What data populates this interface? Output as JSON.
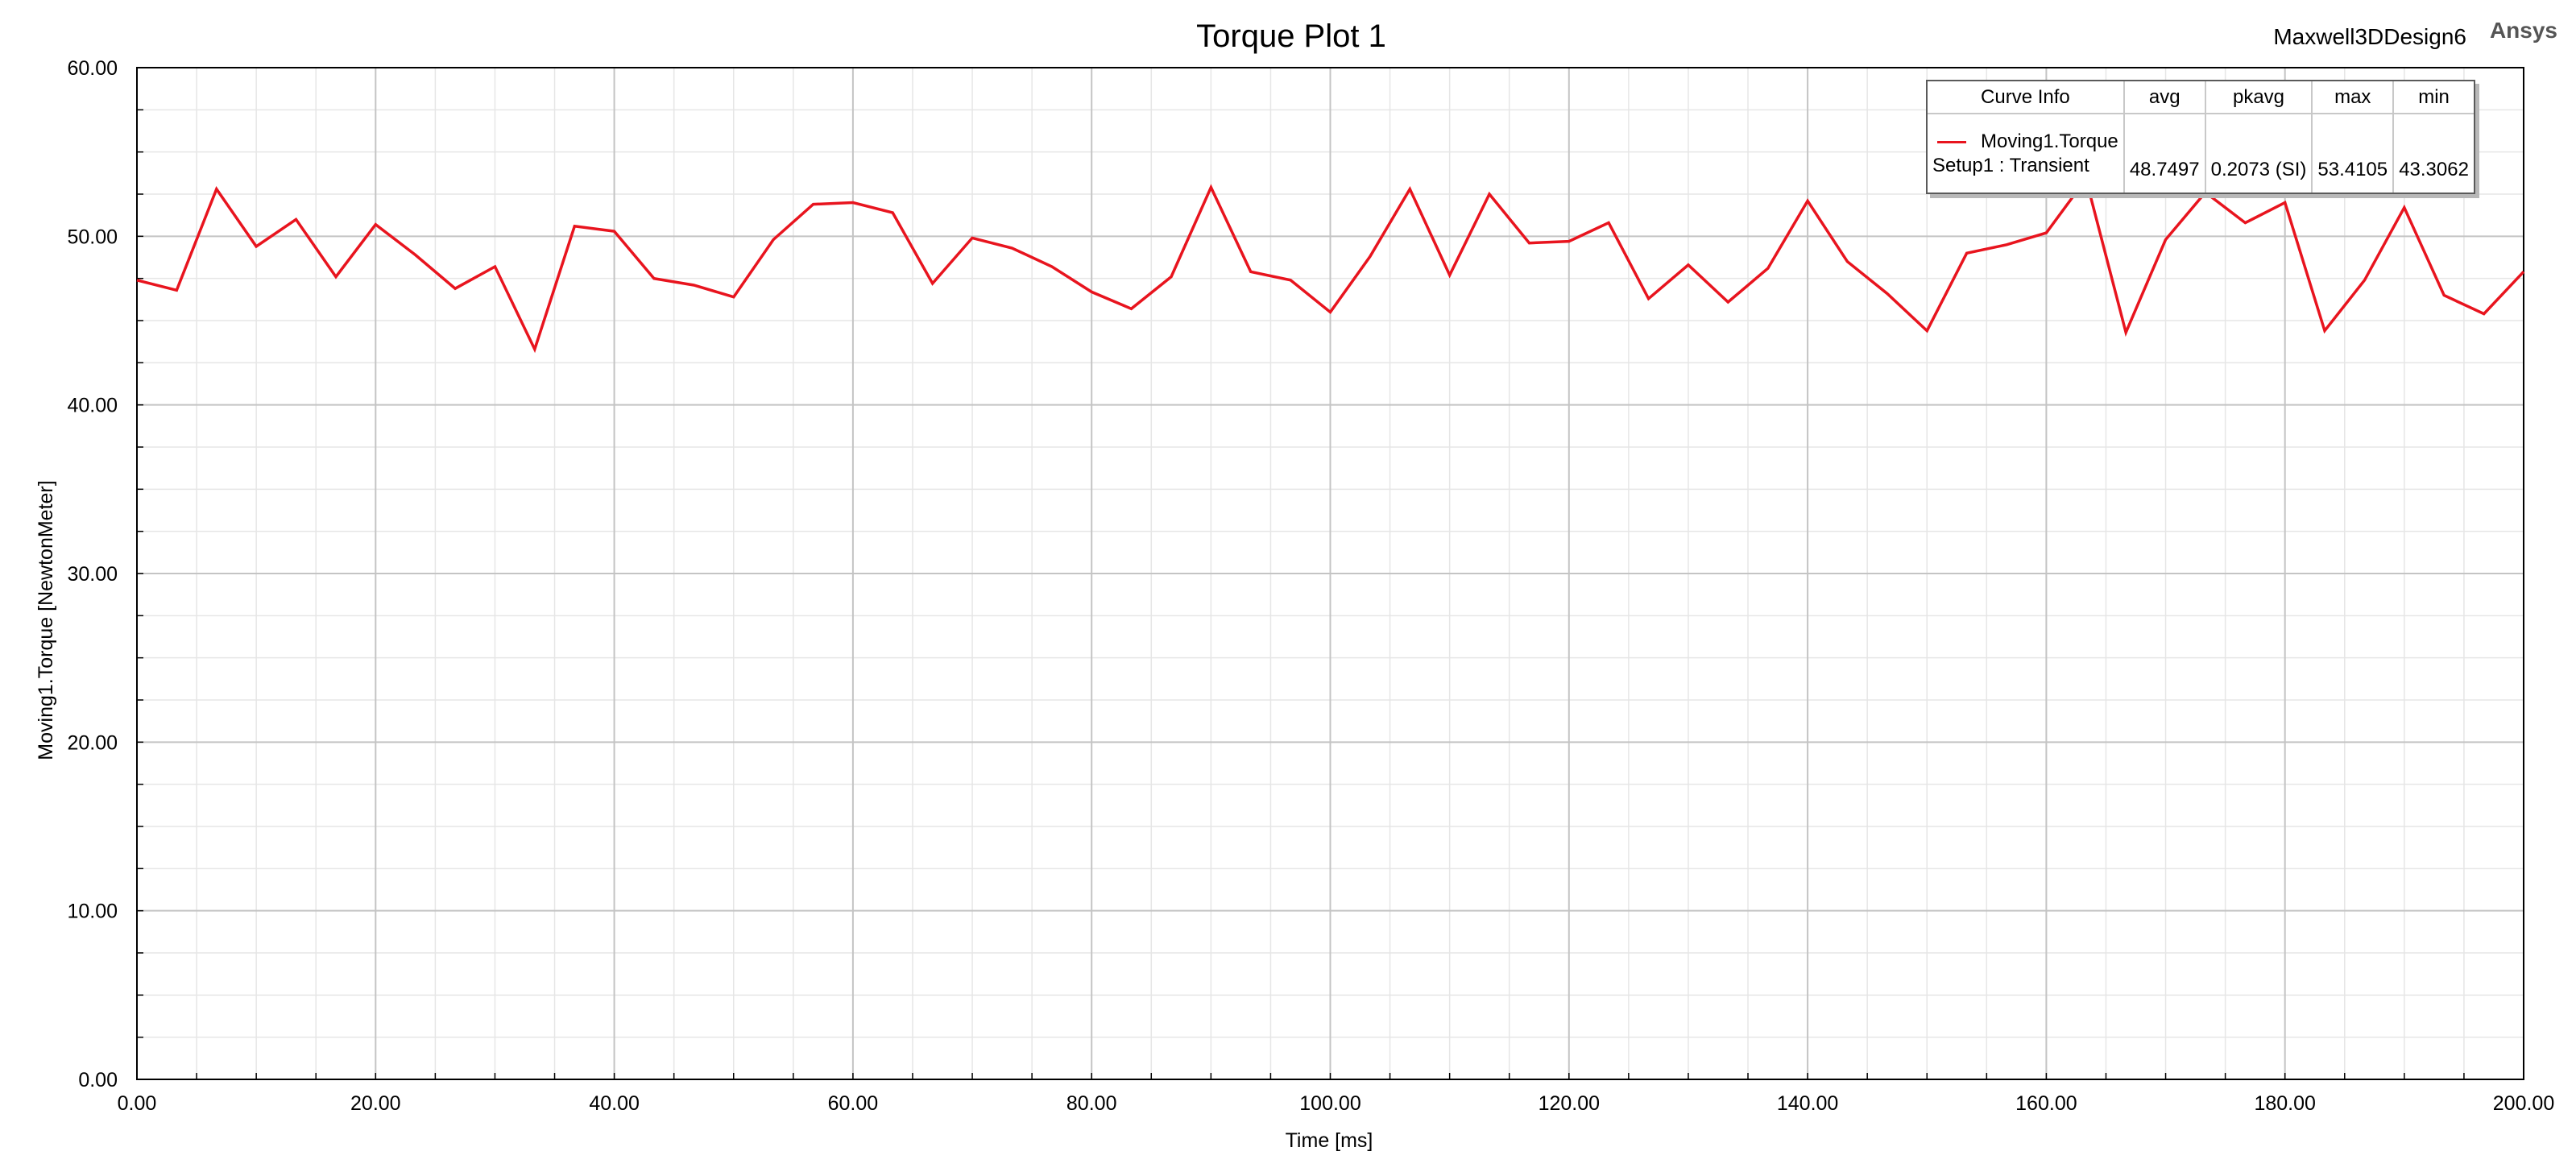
{
  "header": {
    "title": "Torque Plot 1",
    "design_name": "Maxwell3DDesign6",
    "brand": "Ansys"
  },
  "legend": {
    "headers": [
      "Curve Info",
      "avg",
      "pkavg",
      "max",
      "min"
    ],
    "curve_name": "Moving1.Torque",
    "setup": "Setup1 : Transient",
    "avg": "48.7497",
    "pkavg": "0.2073 (SI)",
    "max": "53.4105",
    "min": "43.3062"
  },
  "chart_data": {
    "type": "line",
    "title": "Torque Plot 1",
    "xlabel": "Time [ms]",
    "ylabel": "Moving1.Torque [NewtonMeter]",
    "xlim": [
      0,
      200
    ],
    "ylim": [
      0,
      60
    ],
    "x_ticks": [
      "0.00",
      "20.00",
      "40.00",
      "60.00",
      "80.00",
      "100.00",
      "120.00",
      "140.00",
      "160.00",
      "180.00",
      "200.00"
    ],
    "y_ticks": [
      "0.00",
      "10.00",
      "20.00",
      "30.00",
      "40.00",
      "50.00",
      "60.00"
    ],
    "grid": true,
    "legend_position": "top-right",
    "series": [
      {
        "name": "Moving1.Torque",
        "color": "#e8141e",
        "x": [
          0,
          3.33,
          6.67,
          10,
          13.33,
          16.67,
          20,
          23.33,
          26.67,
          30,
          33.33,
          36.67,
          40,
          43.33,
          46.67,
          50,
          53.33,
          56.67,
          60,
          63.33,
          66.67,
          70,
          73.33,
          76.67,
          80,
          83.33,
          86.67,
          90,
          93.33,
          96.67,
          100,
          103.33,
          106.67,
          110,
          113.33,
          116.67,
          120,
          123.33,
          126.67,
          130,
          133.33,
          136.67,
          140,
          143.33,
          146.67,
          150,
          153.33,
          156.67,
          160,
          163.33,
          166.67,
          170,
          173.33,
          176.67,
          180,
          183.33,
          186.67,
          190,
          193.33,
          196.67,
          200
        ],
        "y": [
          47.4,
          46.8,
          52.8,
          49.4,
          51.0,
          47.6,
          50.7,
          48.9,
          46.9,
          48.2,
          43.3,
          50.6,
          50.3,
          47.5,
          47.1,
          46.4,
          49.8,
          51.9,
          52.0,
          51.4,
          47.2,
          49.9,
          49.3,
          48.2,
          46.7,
          45.7,
          47.6,
          52.9,
          47.9,
          47.4,
          45.5,
          48.8,
          52.8,
          47.7,
          52.5,
          49.6,
          49.7,
          50.8,
          46.3,
          48.3,
          46.1,
          48.1,
          52.1,
          48.5,
          46.6,
          44.4,
          49.0,
          49.5,
          50.2,
          53.4,
          44.3,
          49.8,
          52.6,
          50.8,
          52.0,
          44.4,
          47.4,
          51.7,
          46.5,
          45.4,
          47.9
        ]
      }
    ]
  }
}
